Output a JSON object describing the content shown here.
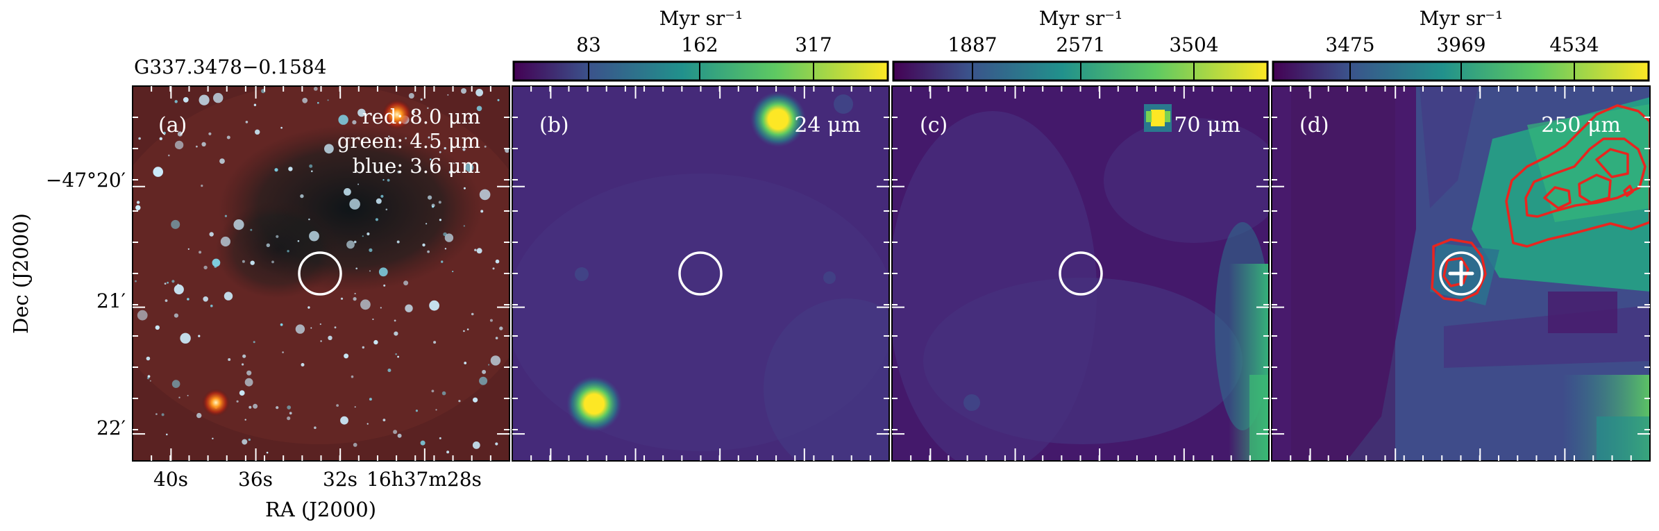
{
  "source_name": "G337.3478−0.1584",
  "axes": {
    "xlabel": "RA (J2000)",
    "ylabel": "Dec (J2000)",
    "x_ticks": [
      "40s",
      "36s",
      "32s",
      "16h37m28s"
    ],
    "y_ticks": [
      "−47°20′",
      "21′",
      "22′"
    ]
  },
  "panels": [
    {
      "tag": "(a)",
      "kind": "rgb",
      "bands": [
        "red: 8.0 μm",
        "green: 4.5 μm",
        "blue: 3.6 μm"
      ]
    },
    {
      "tag": "(b)",
      "kind": "map",
      "label": "24 μm",
      "colorbar": {
        "unit": "Myr sr⁻¹",
        "ticks": [
          "83",
          "162",
          "317"
        ]
      }
    },
    {
      "tag": "(c)",
      "kind": "map",
      "label": "70 μm",
      "colorbar": {
        "unit": "Myr sr⁻¹",
        "ticks": [
          "1887",
          "2571",
          "3504"
        ]
      }
    },
    {
      "tag": "(d)",
      "kind": "map",
      "label": "250 μm",
      "colorbar": {
        "unit": "Myr sr⁻¹",
        "ticks": [
          "3475",
          "3969",
          "4534"
        ]
      }
    }
  ],
  "colors": {
    "viridis_dark": "#440154",
    "viridis_mid": "#21918c",
    "viridis_bright": "#fde725",
    "marker": "#ffffff",
    "contour": "#e8251f"
  }
}
